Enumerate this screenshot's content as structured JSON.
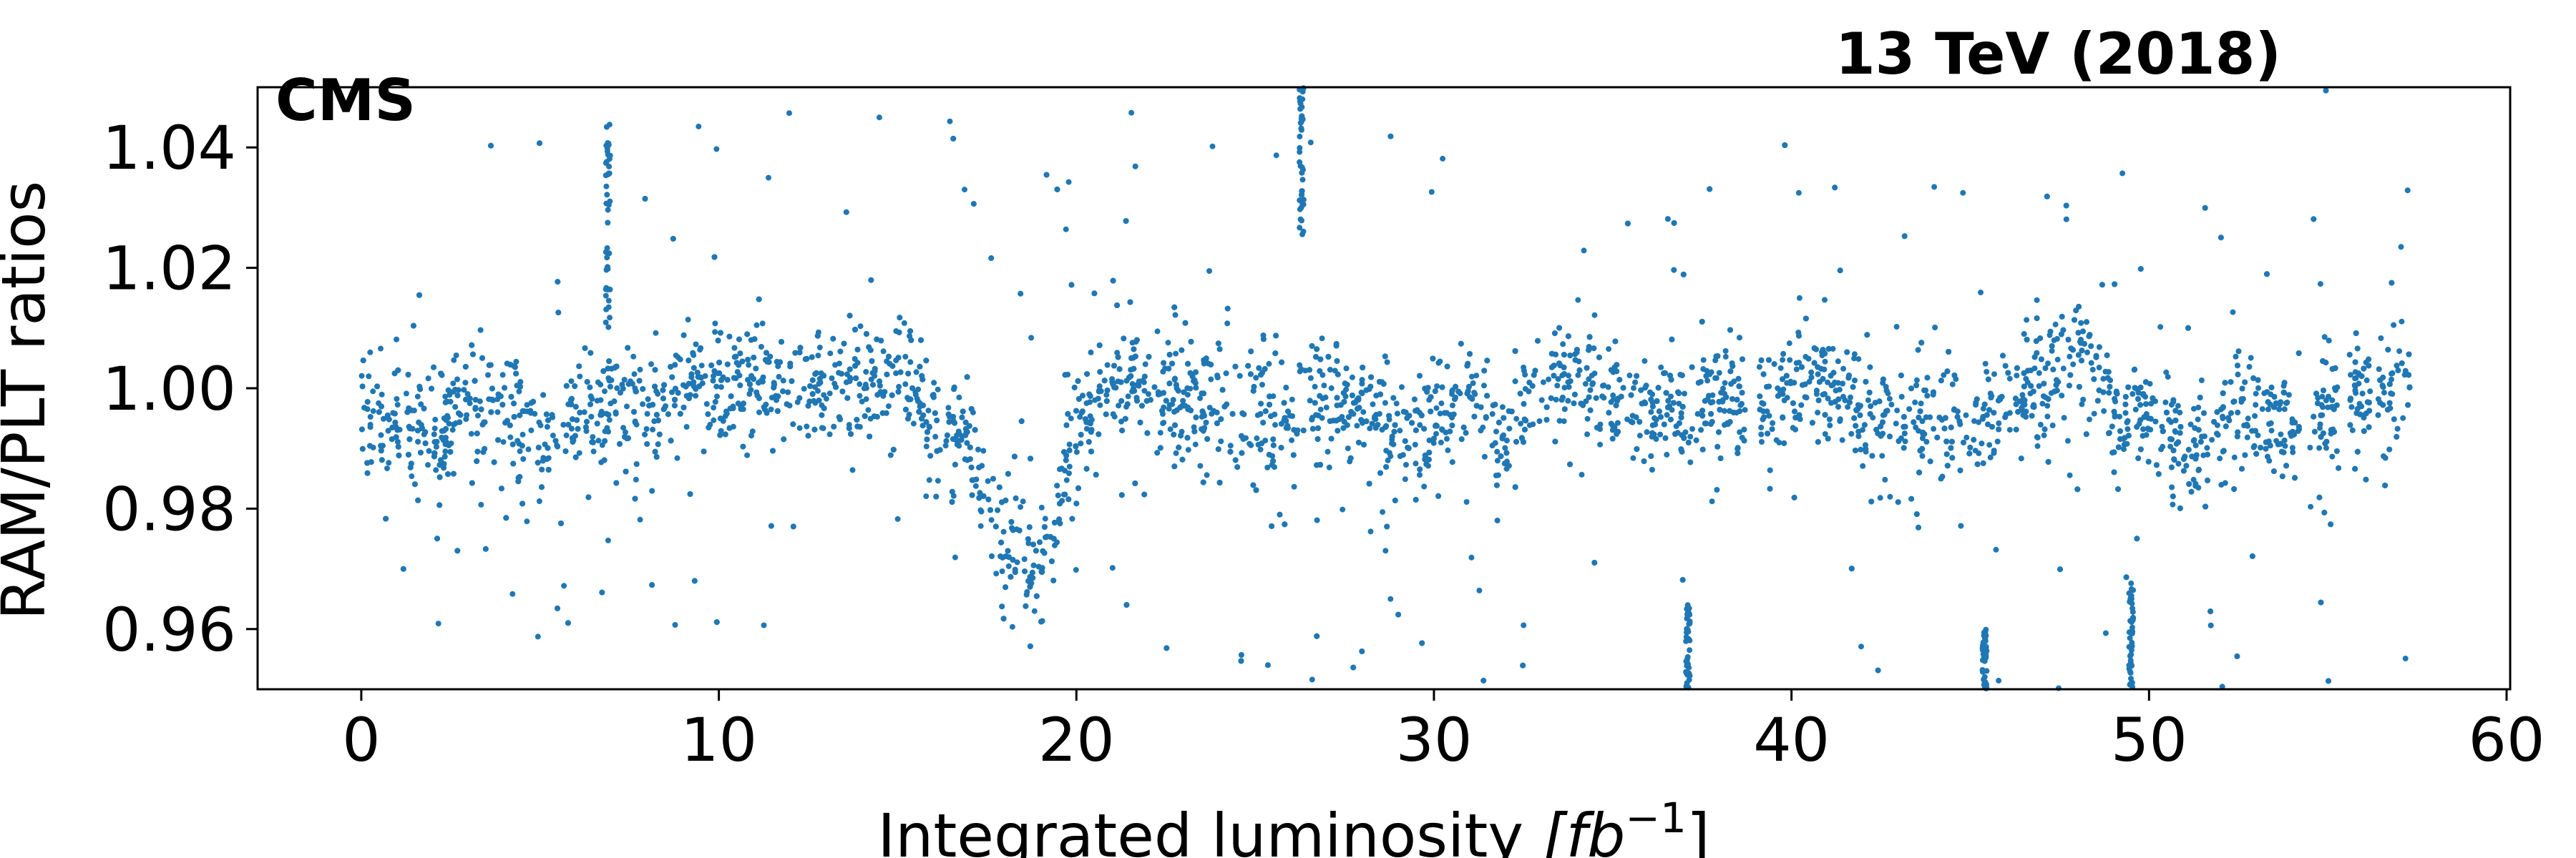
{
  "chart_data": {
    "type": "scatter",
    "experiment_label": "CMS",
    "energy_label": "13 TeV (2018)",
    "xlabel_text": "Integrated luminosity ",
    "xlabel_unit": "[fb",
    "xlabel_exponent": "−1",
    "xlabel_close": "]",
    "ylabel": "RAM/PLT ratios",
    "xlim": [
      -2.9,
      60.1
    ],
    "ylim": [
      0.95,
      1.05
    ],
    "x_ticks": [
      0,
      10,
      20,
      30,
      40,
      50,
      60
    ],
    "x_tick_labels": [
      "0",
      "10",
      "20",
      "30",
      "40",
      "50",
      "60"
    ],
    "y_ticks": [
      0.96,
      0.98,
      1.0,
      1.02,
      1.04
    ],
    "y_tick_labels": [
      "0.96",
      "0.98",
      "1.00",
      "1.02",
      "1.04"
    ],
    "grid": false,
    "marker_color": "#1f77b4",
    "series": [
      {
        "values_note_omitted": true,
        "x_range": [
          0.0,
          57.3
        ],
        "baseline": [
          [
            0.0,
            0.996
          ],
          [
            1.0,
            0.994
          ],
          [
            2.0,
            0.992
          ],
          [
            3.0,
            0.997
          ],
          [
            4.0,
            0.996
          ],
          [
            5.0,
            0.991
          ],
          [
            6.0,
            0.997
          ],
          [
            7.0,
            0.998
          ],
          [
            8.0,
            0.996
          ],
          [
            9.0,
            1.002
          ],
          [
            10.0,
            1.0
          ],
          [
            11.0,
            1.002
          ],
          [
            12.0,
            0.999
          ],
          [
            13.0,
            1.0
          ],
          [
            14.0,
            0.999
          ],
          [
            15.0,
            1.004
          ],
          [
            16.0,
            0.994
          ],
          [
            17.0,
            0.991
          ],
          [
            18.0,
            0.972
          ],
          [
            19.0,
            0.97
          ],
          [
            20.0,
            0.993
          ],
          [
            21.0,
            1.001
          ],
          [
            22.0,
            1.001
          ],
          [
            23.0,
            0.996
          ],
          [
            24.0,
            0.997
          ],
          [
            25.0,
            0.996
          ],
          [
            26.0,
            0.995
          ],
          [
            27.0,
            0.996
          ],
          [
            28.0,
            0.997
          ],
          [
            29.0,
            0.991
          ],
          [
            30.0,
            0.994
          ],
          [
            31.0,
            0.999
          ],
          [
            32.0,
            0.991
          ],
          [
            33.0,
            1.001
          ],
          [
            34.0,
            1.002
          ],
          [
            35.0,
            0.998
          ],
          [
            36.0,
            0.997
          ],
          [
            37.0,
            0.996
          ],
          [
            38.0,
            0.998
          ],
          [
            39.0,
            0.998
          ],
          [
            40.0,
            1.0
          ],
          [
            41.0,
            0.999
          ],
          [
            42.0,
            0.996
          ],
          [
            43.0,
            0.995
          ],
          [
            44.0,
            0.995
          ],
          [
            45.0,
            0.994
          ],
          [
            46.0,
            0.997
          ],
          [
            47.0,
            0.999
          ],
          [
            48.0,
            1.008
          ],
          [
            49.0,
            0.995
          ],
          [
            50.0,
            0.998
          ],
          [
            51.0,
            0.989
          ],
          [
            52.0,
            0.995
          ],
          [
            53.0,
            0.995
          ],
          [
            54.0,
            0.993
          ],
          [
            55.0,
            0.996
          ],
          [
            56.0,
            0.999
          ],
          [
            57.0,
            1.0
          ],
          [
            57.3,
            1.0
          ]
        ]
      }
    ]
  }
}
